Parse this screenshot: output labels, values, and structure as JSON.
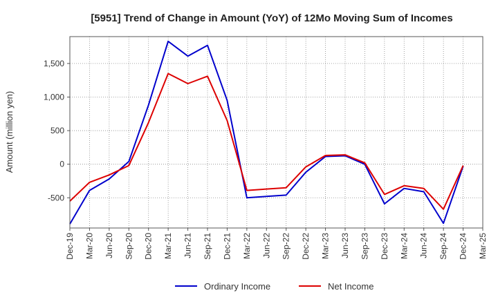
{
  "chart_data": {
    "type": "line",
    "title": "[5951]  Trend of Change in Amount (YoY) of 12Mo Moving Sum of Incomes",
    "xlabel": "",
    "ylabel": "Amount (million yen)",
    "ylim": [
      -950,
      1900
    ],
    "yticks": [
      -500,
      0,
      500,
      1000,
      1500
    ],
    "ytick_labels": [
      "-500",
      "0",
      "500",
      "1,000",
      "1,500"
    ],
    "categories": [
      "Dec-19",
      "Mar-20",
      "Jun-20",
      "Sep-20",
      "Dec-20",
      "Mar-21",
      "Jun-21",
      "Sep-21",
      "Dec-21",
      "Mar-22",
      "Jun-22",
      "Sep-22",
      "Dec-22",
      "Mar-23",
      "Jun-23",
      "Sep-23",
      "Dec-23",
      "Mar-24",
      "Jun-24",
      "Sep-24",
      "Dec-24",
      "Mar-25"
    ],
    "grid": true,
    "legend_position": "bottom",
    "series": [
      {
        "name": "Ordinary Income",
        "color": "#0000cc",
        "values": [
          -890,
          -390,
          -220,
          40,
          880,
          1830,
          1610,
          1770,
          950,
          -500,
          -480,
          -460,
          -120,
          115,
          125,
          0,
          -590,
          -360,
          -410,
          -880,
          -30,
          null
        ]
      },
      {
        "name": "Net Income",
        "color": "#dd0000",
        "values": [
          -550,
          -270,
          -160,
          -20,
          620,
          1350,
          1200,
          1310,
          650,
          -390,
          -370,
          -350,
          -40,
          130,
          140,
          20,
          -450,
          -320,
          -360,
          -670,
          -20,
          null
        ]
      }
    ]
  }
}
